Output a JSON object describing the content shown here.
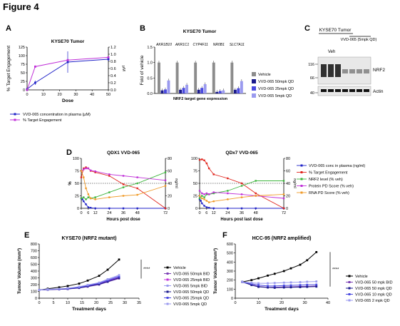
{
  "figure_title": "Figure 4",
  "panel_labels": [
    "A",
    "B",
    "C",
    "D",
    "E",
    "F"
  ],
  "colors": {
    "blue": "#1f22c8",
    "magenta": "#c030d8",
    "green": "#3cb43c",
    "red": "#e0241c",
    "orange": "#f09a28",
    "purple": "#7b3fb4",
    "grey": "#8c8c8c",
    "navy": "#1a1a8c",
    "midblue": "#4a4ae0",
    "lightblue": "#9a9aef",
    "black": "#000000"
  },
  "chart_data": [
    {
      "panel": "A",
      "type": "line",
      "title": "KYSE70 Tumor",
      "xlabel": "Dose",
      "ylabel": "% Target Engagement",
      "y2label": "µM",
      "xlim": [
        0,
        50
      ],
      "ylim": [
        0,
        125
      ],
      "y2lim": [
        0,
        1.2
      ],
      "x_ticks": [
        "0",
        "10",
        "20",
        "30",
        "40",
        "50"
      ],
      "y_ticks": [
        "0",
        "25",
        "50",
        "75",
        "100",
        "125"
      ],
      "y2_ticks": [
        "0.0",
        "0.2",
        "0.4",
        "0.6",
        "0.8",
        "1.0",
        "1.2"
      ],
      "series": [
        {
          "name": "VVD-065 concentration in plasma (µM)",
          "axis": "right",
          "color": "blue",
          "x": [
            0,
            5,
            25,
            50
          ],
          "y": [
            0.02,
            0.2,
            0.78,
            0.86
          ],
          "err": [
            0,
            0.06,
            0.3,
            0.05
          ]
        },
        {
          "name": "% Target Engagement",
          "axis": "left",
          "color": "magenta",
          "x": [
            0,
            5,
            25,
            50
          ],
          "y": [
            0,
            68,
            87,
            95
          ],
          "err": [
            0,
            3,
            0,
            0
          ]
        }
      ]
    },
    {
      "panel": "B",
      "type": "bar",
      "title": "KYSE70 Tumor",
      "xlabel": "NRF2 target gene expression",
      "ylabel": "Fold of vehicle",
      "ylim": [
        0,
        1.5
      ],
      "y_ticks": [
        "0.0",
        "0.5",
        "1.0",
        "1.5"
      ],
      "categories": [
        "AKR1B10",
        "AKR1C1",
        "CYP4F11",
        "NR0B1",
        "SLC7A11"
      ],
      "series": [
        {
          "name": "Vehicle",
          "color": "grey",
          "values": [
            1.0,
            1.0,
            1.0,
            1.0,
            1.0
          ]
        },
        {
          "name": "VVD-065 50mpk QD",
          "color": "navy",
          "values": [
            0.1,
            0.12,
            0.12,
            0.05,
            0.12
          ]
        },
        {
          "name": "VVD-065 25mpk QD",
          "color": "midblue",
          "values": [
            0.13,
            0.18,
            0.18,
            0.08,
            0.17
          ]
        },
        {
          "name": "VVD-065 5mpk QD",
          "color": "lightblue",
          "values": [
            0.42,
            0.28,
            0.3,
            0.1,
            0.4
          ]
        }
      ]
    },
    {
      "panel": "D1",
      "type": "line",
      "title": "QDX1 VVD-065",
      "xlabel": "Hours post dose",
      "ylabel": "%",
      "y2label": "ng/ml",
      "x_ticks": [
        "0",
        "6",
        "12",
        "24",
        "36",
        "48",
        "72"
      ],
      "ylim": [
        0,
        100
      ],
      "y2lim": [
        0,
        80
      ],
      "y_ticks": [
        "0",
        "25",
        "50",
        "75",
        "100"
      ],
      "y2_ticks": [
        "0",
        "20",
        "40",
        "60",
        "80"
      ],
      "threshold": 50,
      "series": [
        {
          "name": "VVD-065 conc in plasma (ng/ml)",
          "color": "blue",
          "x": [
            0,
            1,
            2,
            4,
            6,
            8,
            12,
            24,
            36,
            48,
            72
          ],
          "y": [
            20,
            18,
            14,
            8,
            2,
            1,
            0,
            0,
            0,
            0,
            0
          ]
        },
        {
          "name": "% Target Engagement",
          "color": "red",
          "x": [
            0,
            2,
            4,
            6,
            8,
            12,
            24,
            36,
            48,
            72
          ],
          "y": [
            62,
            80,
            82,
            80,
            75,
            72,
            65,
            48,
            40,
            0
          ]
        },
        {
          "name": "NRF2 level (% veh)",
          "color": "green",
          "x": [
            0,
            2,
            4,
            6,
            8,
            12,
            24,
            36,
            48,
            72
          ],
          "y": [
            20,
            22,
            18,
            22,
            20,
            22,
            32,
            42,
            50,
            72
          ]
        },
        {
          "name": "Protein PD Score (% veh)",
          "color": "magenta",
          "x": [
            0,
            2,
            4,
            6,
            8,
            12,
            24,
            36,
            48,
            72
          ],
          "y": [
            75,
            78,
            80,
            80,
            76,
            74,
            68,
            65,
            62,
            56
          ]
        },
        {
          "name": "RNA PD Score (% veh)",
          "color": "orange",
          "x": [
            0,
            2,
            4,
            6,
            8,
            12,
            24,
            36,
            48,
            72
          ],
          "y": [
            75,
            62,
            40,
            28,
            20,
            18,
            22,
            25,
            27,
            45
          ]
        }
      ]
    },
    {
      "panel": "D2",
      "type": "line",
      "title": "QDx7 VVD-065",
      "xlabel": "Hours post last dose",
      "ylabel": "",
      "y2label": "ng/ml",
      "x_ticks": [
        "0",
        "6",
        "12",
        "24",
        "36",
        "48",
        "72"
      ],
      "ylim": [
        0,
        100
      ],
      "y2lim": [
        0,
        80
      ],
      "y_ticks": [
        "0",
        "25",
        "50",
        "75",
        "100"
      ],
      "y2_ticks": [
        "0",
        "20",
        "40",
        "60",
        "80"
      ],
      "threshold": 50,
      "series": [
        {
          "name": "VVD-065 conc in plasma (ng/ml)",
          "color": "blue",
          "x": [
            0,
            1,
            2,
            4,
            6,
            8,
            12,
            24,
            36,
            48,
            72
          ],
          "y": [
            18,
            15,
            10,
            5,
            2,
            1,
            0,
            0,
            0,
            0,
            0
          ]
        },
        {
          "name": "% Target Engagement",
          "color": "red",
          "x": [
            0,
            2,
            4,
            6,
            8,
            12,
            24,
            36,
            48,
            72
          ],
          "y": [
            97,
            98,
            96,
            90,
            80,
            68,
            60,
            50,
            30,
            0
          ]
        },
        {
          "name": "NRF2 level (% veh)",
          "color": "green",
          "x": [
            0,
            2,
            4,
            6,
            8,
            12,
            24,
            36,
            48,
            72
          ],
          "y": [
            20,
            25,
            22,
            28,
            28,
            30,
            35,
            45,
            55,
            55
          ]
        },
        {
          "name": "Protein PD Score (% veh)",
          "color": "magenta",
          "x": [
            0,
            2,
            4,
            6,
            8,
            12,
            24,
            36,
            48,
            72
          ],
          "y": [
            35,
            30,
            28,
            30,
            28,
            32,
            30,
            28,
            25,
            20
          ]
        },
        {
          "name": "RNA PD Score (% veh)",
          "color": "orange",
          "x": [
            0,
            2,
            4,
            6,
            8,
            12,
            24,
            36,
            48,
            72
          ],
          "y": [
            25,
            20,
            18,
            15,
            12,
            14,
            18,
            22,
            25,
            28
          ]
        }
      ]
    },
    {
      "panel": "E",
      "type": "line",
      "title": "KYSE70 (NRF2 mutant)",
      "xlabel": "Treatment days",
      "ylabel": "Tumor Volume (mm³)",
      "xlim": [
        0,
        35
      ],
      "ylim": [
        0,
        800
      ],
      "x_ticks": [
        "0",
        "5",
        "10",
        "15",
        "20",
        "25",
        "30",
        "35"
      ],
      "y_ticks": [
        "0",
        "100",
        "200",
        "300",
        "400",
        "500",
        "600",
        "700",
        "800"
      ],
      "significance": "****",
      "x": [
        0,
        3,
        7,
        10,
        14,
        17,
        21,
        24,
        28
      ],
      "series": [
        {
          "name": "Vehicle",
          "color": "black",
          "y": [
            120,
            140,
            160,
            180,
            215,
            260,
            330,
            420,
            570
          ]
        },
        {
          "name": "VVD-065 50mpk BID",
          "color": "purple",
          "y": [
            120,
            125,
            130,
            135,
            150,
            170,
            200,
            240,
            290
          ]
        },
        {
          "name": "VVD-065 25mpk BID",
          "color": "magenta",
          "y": [
            120,
            127,
            133,
            140,
            158,
            180,
            215,
            255,
            310
          ]
        },
        {
          "name": "VVD-065 5mpk BID",
          "color": "lightblue",
          "y": [
            120,
            130,
            136,
            145,
            165,
            190,
            225,
            270,
            330
          ]
        },
        {
          "name": "VVD-065 50mpk QD",
          "color": "navy",
          "y": [
            120,
            126,
            131,
            137,
            153,
            175,
            205,
            245,
            300
          ]
        },
        {
          "name": "VVD-065 25mpk QD",
          "color": "midblue",
          "y": [
            120,
            128,
            134,
            142,
            160,
            185,
            220,
            262,
            318
          ]
        },
        {
          "name": "VVD-065 5mpk QD",
          "color": "lightblue",
          "y": [
            120,
            131,
            138,
            148,
            170,
            195,
            230,
            280,
            340
          ]
        }
      ]
    },
    {
      "panel": "F",
      "type": "line",
      "title": "HCC-95 (NRF2 amplified)",
      "xlabel": "Treatment days",
      "ylabel": "Tumor Volume (mm³)",
      "xlim": [
        0,
        40
      ],
      "ylim": [
        0,
        600
      ],
      "x_ticks": [
        "0",
        "10",
        "20",
        "30",
        "40"
      ],
      "y_ticks": [
        "0",
        "100",
        "200",
        "300",
        "400",
        "500",
        "600"
      ],
      "significance": "****",
      "x": [
        3,
        7,
        10,
        14,
        17,
        21,
        24,
        28,
        31,
        35
      ],
      "series": [
        {
          "name": "Vehicle",
          "color": "black",
          "y": [
            180,
            200,
            220,
            250,
            270,
            300,
            330,
            370,
            420,
            510
          ]
        },
        {
          "name": "VVD-065 50 mpk BID",
          "color": "purple",
          "y": [
            180,
            150,
            130,
            120,
            120,
            125,
            125,
            130,
            130,
            135
          ]
        },
        {
          "name": "VVD-065 50 mpk QD",
          "color": "navy",
          "y": [
            180,
            145,
            125,
            118,
            115,
            118,
            120,
            122,
            125,
            128
          ]
        },
        {
          "name": "VVD-065 10 mpk QD",
          "color": "midblue",
          "y": [
            180,
            160,
            145,
            135,
            135,
            140,
            142,
            145,
            148,
            150
          ]
        },
        {
          "name": "VVD-065 2 mpk QD",
          "color": "lightblue",
          "y": [
            180,
            170,
            165,
            165,
            168,
            172,
            175,
            178,
            182,
            185
          ]
        }
      ]
    }
  ],
  "panel_C": {
    "title": "KYSE70 Tumor",
    "group_label": "VVD-065 (5mpk QD)",
    "lane_labels": [
      "Veh",
      "VVD-065 (5mpk QD)"
    ],
    "markers_top": [
      "116",
      "66"
    ],
    "markers_bottom": [
      "40"
    ],
    "band_labels": [
      "NRF2",
      "Actin"
    ]
  }
}
